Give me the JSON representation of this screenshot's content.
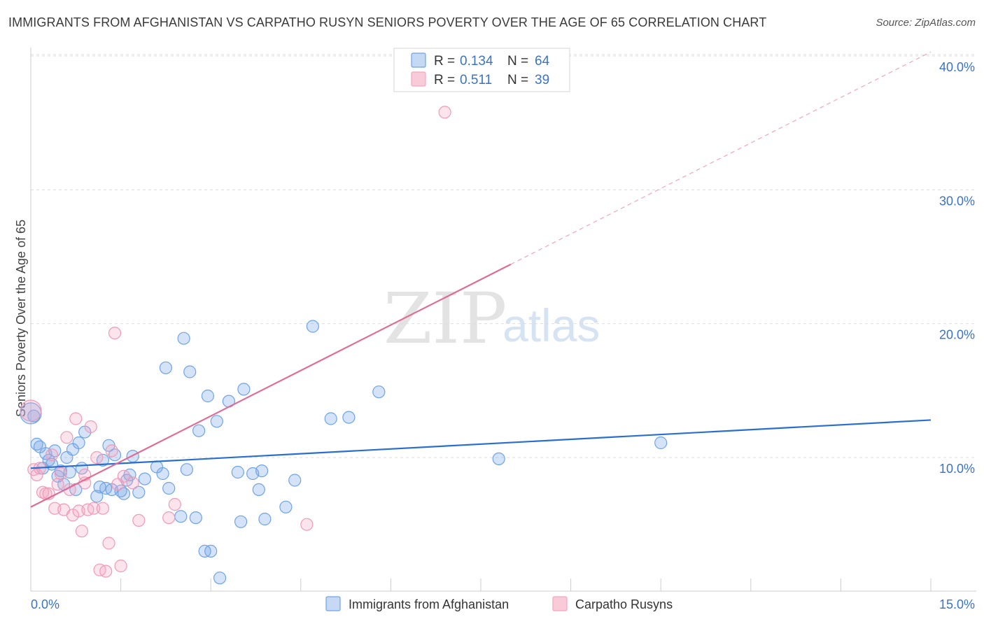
{
  "header": {
    "title": "IMMIGRANTS FROM AFGHANISTAN VS CARPATHO RUSYN SENIORS POVERTY OVER THE AGE OF 65 CORRELATION CHART",
    "source": "Source: ZipAtlas.com"
  },
  "watermark": {
    "zip": "ZIP",
    "atlas": "atlas"
  },
  "colors": {
    "blue": "#6fa3e6",
    "blue_line": "#2b6fcd",
    "pink": "#f4a6bf",
    "pink_line": "#e06b95"
  },
  "legend": {
    "rows": [
      {
        "r_label": "R =",
        "r_value": "0.134",
        "n_label": "N =",
        "n_value": "64"
      },
      {
        "r_label": "R =",
        "r_value": "0.511",
        "n_label": "N =",
        "n_value": "39"
      }
    ]
  },
  "chart_data": {
    "type": "scatter",
    "title": "IMMIGRANTS FROM AFGHANISTAN VS CARPATHO RUSYN SENIORS POVERTY OVER THE AGE OF 65 CORRELATION CHART",
    "xlabel": "",
    "ylabel": "Seniors Poverty Over the Age of 65",
    "xlim": [
      0,
      15
    ],
    "ylim": [
      0,
      41
    ],
    "x_tick_labels": [
      "0.0%",
      "15.0%"
    ],
    "y_ticks": [
      10,
      20,
      30,
      40
    ],
    "y_tick_labels": [
      "10.0%",
      "20.0%",
      "30.0%",
      "40.0%"
    ],
    "grid": true,
    "series": [
      {
        "name": "Immigrants from Afghanistan",
        "color": "#6fa3e6",
        "r": 0.134,
        "n": 64,
        "trend": {
          "x": [
            0,
            15
          ],
          "y": [
            9.2,
            12.8
          ],
          "dashed_from": null
        },
        "points": [
          [
            0.05,
            13.1
          ],
          [
            0.1,
            11.0
          ],
          [
            0.15,
            10.8
          ],
          [
            0.2,
            9.2
          ],
          [
            0.25,
            10.3
          ],
          [
            0.3,
            9.8
          ],
          [
            0.35,
            9.5
          ],
          [
            0.4,
            10.5
          ],
          [
            0.45,
            8.6
          ],
          [
            0.5,
            9.0
          ],
          [
            0.55,
            8.0
          ],
          [
            0.6,
            10.0
          ],
          [
            0.65,
            8.9
          ],
          [
            0.7,
            10.6
          ],
          [
            0.75,
            7.6
          ],
          [
            0.8,
            11.1
          ],
          [
            0.85,
            9.2
          ],
          [
            0.9,
            11.9
          ],
          [
            1.1,
            7.1
          ],
          [
            1.15,
            7.8
          ],
          [
            1.2,
            9.8
          ],
          [
            1.25,
            7.7
          ],
          [
            1.3,
            10.9
          ],
          [
            1.35,
            7.6
          ],
          [
            1.4,
            10.2
          ],
          [
            1.5,
            7.5
          ],
          [
            1.55,
            7.3
          ],
          [
            1.6,
            8.3
          ],
          [
            1.65,
            8.7
          ],
          [
            1.7,
            10.1
          ],
          [
            1.8,
            7.4
          ],
          [
            1.9,
            8.4
          ],
          [
            2.1,
            9.3
          ],
          [
            2.2,
            8.8
          ],
          [
            2.25,
            16.7
          ],
          [
            2.3,
            7.7
          ],
          [
            2.5,
            5.6
          ],
          [
            2.55,
            18.9
          ],
          [
            2.6,
            9.1
          ],
          [
            2.65,
            16.4
          ],
          [
            2.75,
            5.5
          ],
          [
            2.8,
            12.0
          ],
          [
            2.9,
            3.0
          ],
          [
            2.95,
            14.6
          ],
          [
            3.0,
            3.0
          ],
          [
            3.1,
            12.7
          ],
          [
            3.15,
            1.0
          ],
          [
            3.3,
            14.2
          ],
          [
            3.45,
            8.9
          ],
          [
            3.5,
            5.2
          ],
          [
            3.55,
            15.1
          ],
          [
            3.7,
            8.8
          ],
          [
            3.8,
            7.6
          ],
          [
            3.85,
            9.0
          ],
          [
            3.9,
            5.4
          ],
          [
            4.25,
            6.3
          ],
          [
            4.4,
            8.3
          ],
          [
            4.7,
            19.8
          ],
          [
            5.0,
            12.9
          ],
          [
            5.3,
            13.0
          ],
          [
            5.8,
            14.9
          ],
          [
            7.8,
            9.9
          ],
          [
            10.5,
            11.1
          ],
          [
            0.0,
            13.3
          ]
        ]
      },
      {
        "name": "Carpatho Rusyns",
        "color": "#f4a6bf",
        "r": 0.511,
        "n": 39,
        "trend": {
          "x": [
            0,
            15
          ],
          "y": [
            6.3,
            40.3
          ],
          "dashed_from": 8.0
        },
        "points": [
          [
            0.0,
            13.5
          ],
          [
            0.05,
            9.1
          ],
          [
            0.1,
            8.7
          ],
          [
            0.15,
            9.2
          ],
          [
            0.2,
            7.4
          ],
          [
            0.25,
            7.3
          ],
          [
            0.3,
            7.3
          ],
          [
            0.35,
            10.2
          ],
          [
            0.4,
            6.2
          ],
          [
            0.45,
            8.0
          ],
          [
            0.5,
            8.8
          ],
          [
            0.55,
            6.1
          ],
          [
            0.6,
            11.5
          ],
          [
            0.65,
            7.6
          ],
          [
            0.7,
            5.7
          ],
          [
            0.75,
            12.9
          ],
          [
            0.8,
            6.0
          ],
          [
            0.85,
            4.5
          ],
          [
            0.9,
            8.1
          ],
          [
            0.95,
            6.1
          ],
          [
            1.0,
            12.3
          ],
          [
            1.05,
            6.2
          ],
          [
            1.1,
            10.0
          ],
          [
            1.15,
            1.6
          ],
          [
            1.2,
            6.2
          ],
          [
            1.25,
            1.5
          ],
          [
            1.3,
            3.6
          ],
          [
            1.35,
            10.5
          ],
          [
            1.4,
            19.3
          ],
          [
            1.45,
            8.0
          ],
          [
            1.5,
            1.9
          ],
          [
            1.55,
            8.6
          ],
          [
            1.7,
            8.1
          ],
          [
            1.8,
            5.3
          ],
          [
            2.3,
            5.5
          ],
          [
            2.4,
            6.5
          ],
          [
            4.6,
            5.0
          ],
          [
            6.9,
            35.8
          ],
          [
            0.9,
            8.7
          ]
        ]
      }
    ]
  },
  "bottom_legend": {
    "items": [
      {
        "label": "Immigrants from Afghanistan"
      },
      {
        "label": "Carpatho Rusyns"
      }
    ]
  }
}
